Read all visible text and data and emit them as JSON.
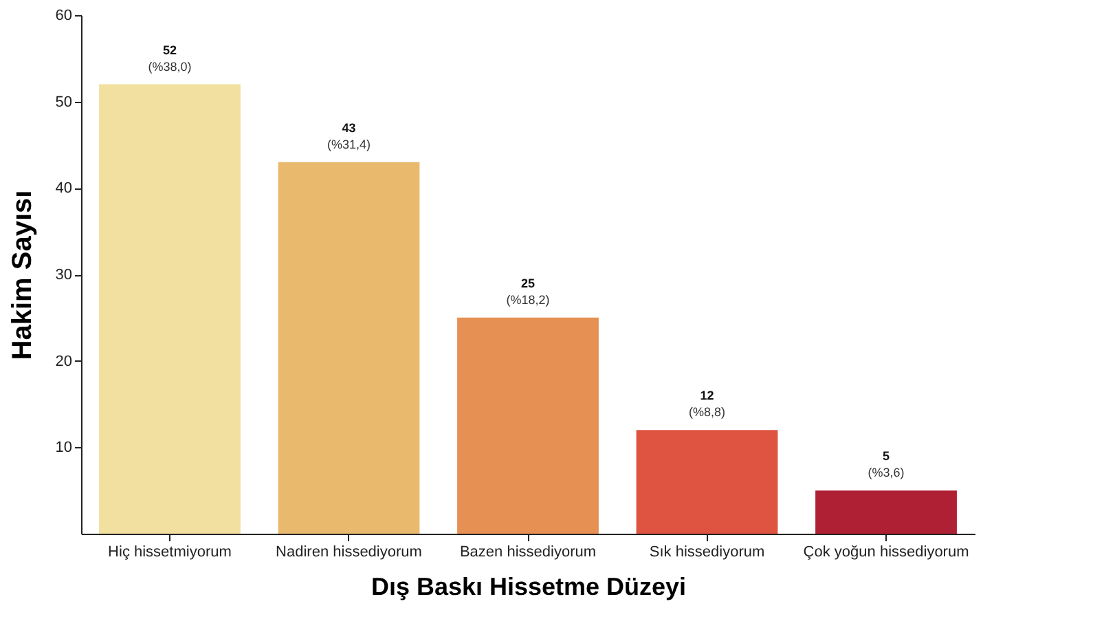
{
  "chart_data": {
    "type": "bar",
    "xlabel": "Dış Baskı Hissetme Düzeyi",
    "ylabel": "Hakim Sayısı",
    "categories": [
      "Hiç hissetmiyorum",
      "Nadiren hissediyorum",
      "Bazen hissediyorum",
      "Sık hissediyorum",
      "Çok yoğun hissediyorum"
    ],
    "values": [
      52,
      43,
      25,
      12,
      5
    ],
    "colors": [
      "#f2e0a0",
      "#e9b96e",
      "#e69053",
      "#de5440",
      "#b02035"
    ],
    "value_labels": [
      "52\n(%38,0)",
      "43\n(%31,4)",
      "25\n(%18,2)",
      "12\n(%8,8)",
      "5\n(%3,6)"
    ],
    "ylim": [
      0,
      60
    ],
    "yticks": [
      10,
      20,
      30,
      40,
      50,
      60
    ],
    "grid": false
  }
}
